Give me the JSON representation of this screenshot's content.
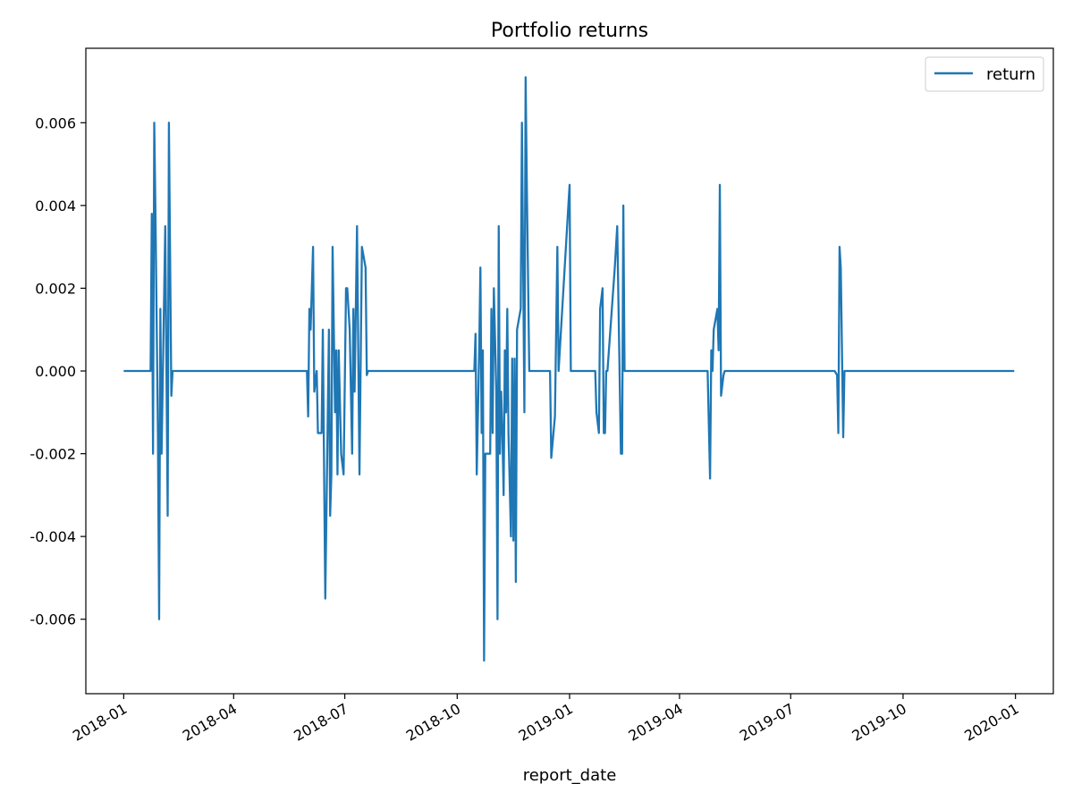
{
  "chart_data": {
    "type": "line",
    "title": "Portfolio returns",
    "xlabel": "report_date",
    "ylabel": "",
    "xlim": [
      "2017-12-01",
      "2020-02-01"
    ],
    "ylim": [
      -0.0078,
      0.0078
    ],
    "x_ticks": [
      "2018-01",
      "2018-04",
      "2018-07",
      "2018-10",
      "2019-01",
      "2019-04",
      "2019-07",
      "2019-10",
      "2020-01"
    ],
    "y_ticks": [
      "-0.006",
      "-0.004",
      "-0.002",
      "0.000",
      "0.002",
      "0.004",
      "0.006"
    ],
    "y_tick_values": [
      -0.006,
      -0.004,
      -0.002,
      0.0,
      0.002,
      0.004,
      0.006
    ],
    "grid": false,
    "legend": "upper right",
    "series": [
      {
        "name": "return",
        "color": "#1f77b4",
        "points": [
          [
            "2018-01-01",
            0.0
          ],
          [
            "2018-01-23",
            0.0
          ],
          [
            "2018-01-24",
            0.0038
          ],
          [
            "2018-01-25",
            -0.002
          ],
          [
            "2018-01-26",
            0.006
          ],
          [
            "2018-01-27",
            0.0038
          ],
          [
            "2018-01-29",
            -0.0015
          ],
          [
            "2018-01-30",
            -0.006
          ],
          [
            "2018-01-31",
            0.0015
          ],
          [
            "2018-02-01",
            -0.002
          ],
          [
            "2018-02-04",
            0.0035
          ],
          [
            "2018-02-06",
            -0.0035
          ],
          [
            "2018-02-07",
            0.006
          ],
          [
            "2018-02-09",
            -0.0006
          ],
          [
            "2018-02-10",
            0.0
          ],
          [
            "2018-05-31",
            0.0
          ],
          [
            "2018-06-01",
            -0.0011
          ],
          [
            "2018-06-02",
            0.0015
          ],
          [
            "2018-06-03",
            0.001
          ],
          [
            "2018-06-05",
            0.003
          ],
          [
            "2018-06-06",
            -0.0005
          ],
          [
            "2018-06-08",
            0.0
          ],
          [
            "2018-06-09",
            -0.0015
          ],
          [
            "2018-06-12",
            -0.0015
          ],
          [
            "2018-06-13",
            0.001
          ],
          [
            "2018-06-15",
            -0.0055
          ],
          [
            "2018-06-18",
            0.001
          ],
          [
            "2018-06-19",
            -0.0035
          ],
          [
            "2018-06-20",
            -0.0025
          ],
          [
            "2018-06-21",
            0.003
          ],
          [
            "2018-06-23",
            -0.001
          ],
          [
            "2018-06-24",
            0.0005
          ],
          [
            "2018-06-25",
            -0.0025
          ],
          [
            "2018-06-26",
            0.0005
          ],
          [
            "2018-06-28",
            -0.002
          ],
          [
            "2018-06-30",
            -0.0025
          ],
          [
            "2018-07-02",
            0.002
          ],
          [
            "2018-07-03",
            0.002
          ],
          [
            "2018-07-05",
            0.001
          ],
          [
            "2018-07-07",
            -0.002
          ],
          [
            "2018-07-08",
            0.0015
          ],
          [
            "2018-07-09",
            -0.0005
          ],
          [
            "2018-07-11",
            0.0035
          ],
          [
            "2018-07-13",
            -0.0025
          ],
          [
            "2018-07-15",
            0.003
          ],
          [
            "2018-07-18",
            0.0025
          ],
          [
            "2018-07-19",
            -0.0001
          ],
          [
            "2018-07-20",
            0.0
          ],
          [
            "2018-10-15",
            0.0
          ],
          [
            "2018-10-16",
            0.0009
          ],
          [
            "2018-10-17",
            -0.0025
          ],
          [
            "2018-10-19",
            0.0005
          ],
          [
            "2018-10-20",
            0.0025
          ],
          [
            "2018-10-21",
            -0.0015
          ],
          [
            "2018-10-22",
            0.0005
          ],
          [
            "2018-10-23",
            -0.007
          ],
          [
            "2018-10-24",
            -0.002
          ],
          [
            "2018-10-28",
            -0.002
          ],
          [
            "2018-10-29",
            0.0015
          ],
          [
            "2018-10-30",
            -0.0015
          ],
          [
            "2018-10-31",
            0.002
          ],
          [
            "2018-11-02",
            -0.0005
          ],
          [
            "2018-11-03",
            -0.006
          ],
          [
            "2018-11-04",
            0.0035
          ],
          [
            "2018-11-05",
            -0.002
          ],
          [
            "2018-11-06",
            -0.0005
          ],
          [
            "2018-11-07",
            -0.0015
          ],
          [
            "2018-11-08",
            -0.003
          ],
          [
            "2018-11-09",
            0.0005
          ],
          [
            "2018-11-10",
            -0.001
          ],
          [
            "2018-11-11",
            0.0015
          ],
          [
            "2018-11-12",
            -0.0015
          ],
          [
            "2018-11-14",
            -0.004
          ],
          [
            "2018-11-15",
            0.0003
          ],
          [
            "2018-11-16",
            -0.0041
          ],
          [
            "2018-11-17",
            0.0003
          ],
          [
            "2018-11-18",
            -0.0051
          ],
          [
            "2018-11-19",
            0.001
          ],
          [
            "2018-11-22",
            0.0015
          ],
          [
            "2018-11-23",
            0.006
          ],
          [
            "2018-11-25",
            -0.001
          ],
          [
            "2018-11-26",
            0.0071
          ],
          [
            "2018-11-27",
            0.0045
          ],
          [
            "2018-11-29",
            0.0
          ],
          [
            "2018-12-16",
            0.0
          ],
          [
            "2018-12-17",
            -0.0021
          ],
          [
            "2018-12-20",
            -0.0011
          ],
          [
            "2018-12-22",
            0.003
          ],
          [
            "2018-12-23",
            0.0
          ],
          [
            "2019-01-01",
            0.0045
          ],
          [
            "2019-01-02",
            0.0
          ],
          [
            "2019-01-22",
            0.0
          ],
          [
            "2019-01-23",
            -0.001
          ],
          [
            "2019-01-25",
            -0.0015
          ],
          [
            "2019-01-26",
            0.0015
          ],
          [
            "2019-01-28",
            0.002
          ],
          [
            "2019-01-29",
            -0.0015
          ],
          [
            "2019-01-30",
            -0.0015
          ],
          [
            "2019-01-31",
            0.0
          ],
          [
            "2019-02-01",
            0.0
          ],
          [
            "2019-02-07",
            0.0025
          ],
          [
            "2019-02-09",
            0.0035
          ],
          [
            "2019-02-12",
            -0.002
          ],
          [
            "2019-02-13",
            -0.002
          ],
          [
            "2019-02-14",
            0.004
          ],
          [
            "2019-02-15",
            0.0
          ],
          [
            "2019-02-16",
            0.0
          ],
          [
            "2019-04-24",
            0.0
          ],
          [
            "2019-04-26",
            -0.0026
          ],
          [
            "2019-04-27",
            0.0005
          ],
          [
            "2019-04-28",
            0.0
          ],
          [
            "2019-04-29",
            0.001
          ],
          [
            "2019-05-02",
            0.0015
          ],
          [
            "2019-05-03",
            0.0005
          ],
          [
            "2019-05-04",
            0.0045
          ],
          [
            "2019-05-05",
            -0.0006
          ],
          [
            "2019-05-07",
            -0.0001
          ],
          [
            "2019-05-08",
            0.0
          ],
          [
            "2019-08-06",
            0.0
          ],
          [
            "2019-08-08",
            -0.0001
          ],
          [
            "2019-08-09",
            -0.0015
          ],
          [
            "2019-08-10",
            0.003
          ],
          [
            "2019-08-11",
            0.0025
          ],
          [
            "2019-08-13",
            -0.0016
          ],
          [
            "2019-08-14",
            0.0
          ],
          [
            "2019-12-31",
            0.0
          ]
        ]
      }
    ]
  }
}
